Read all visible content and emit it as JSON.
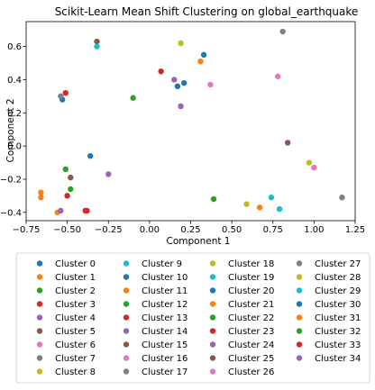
{
  "chart_data": {
    "type": "scatter",
    "title": "Scikit-Learn Mean Shift Clustering on global_earthquake",
    "xlabel": "Component 1",
    "ylabel": "Component 2",
    "xlim": [
      -0.75,
      1.25
    ],
    "ylim": [
      -0.45,
      0.75
    ],
    "xticks": [
      -0.75,
      -0.5,
      -0.25,
      0.0,
      0.25,
      0.5,
      0.75,
      1.0,
      1.25
    ],
    "xtick_labels": [
      "−0.75",
      "−0.50",
      "−0.25",
      "0.00",
      "0.25",
      "0.50",
      "0.75",
      "1.00",
      "1.25"
    ],
    "yticks": [
      -0.4,
      -0.2,
      0.0,
      0.2,
      0.4,
      0.6
    ],
    "ytick_labels": [
      "−0.4",
      "−0.2",
      "0.0",
      "0.2",
      "0.4",
      "0.6"
    ],
    "grid": false,
    "legend": {
      "placement": "below",
      "columns": 4
    },
    "series": [
      {
        "name": "Cluster 0",
        "color": "#1f77b4",
        "points": [
          [
            -0.53,
            0.28
          ],
          [
            0.17,
            0.36
          ],
          [
            -0.36,
            -0.06
          ],
          [
            0.21,
            0.38
          ],
          [
            0.33,
            0.55
          ]
        ]
      },
      {
        "name": "Cluster 1",
        "color": "#ff7f0e",
        "points": [
          [
            -0.66,
            -0.31
          ],
          [
            -0.66,
            -0.28
          ],
          [
            -0.56,
            -0.4
          ],
          [
            0.67,
            -0.37
          ],
          [
            0.31,
            0.51
          ]
        ]
      },
      {
        "name": "Cluster 2",
        "color": "#2ca02c",
        "points": [
          [
            -0.51,
            -0.14
          ],
          [
            -0.48,
            -0.26
          ],
          [
            -0.1,
            0.29
          ],
          [
            0.39,
            -0.32
          ]
        ]
      },
      {
        "name": "Cluster 3",
        "color": "#d62728",
        "points": [
          [
            -0.51,
            0.32
          ],
          [
            -0.38,
            -0.39
          ],
          [
            0.07,
            0.45
          ],
          [
            -0.5,
            -0.3
          ]
        ]
      },
      {
        "name": "Cluster 4",
        "color": "#9467bd",
        "points": [
          [
            0.15,
            0.4
          ],
          [
            -0.25,
            -0.17
          ],
          [
            0.19,
            0.24
          ]
        ]
      },
      {
        "name": "Cluster 5",
        "color": "#8c564b",
        "points": [
          [
            -0.32,
            0.63
          ],
          [
            -0.48,
            -0.19
          ],
          [
            0.84,
            0.02
          ]
        ]
      },
      {
        "name": "Cluster 6",
        "color": "#e377c2",
        "points": [
          [
            0.37,
            0.37
          ],
          [
            0.78,
            0.42
          ],
          [
            1.0,
            -0.13
          ]
        ]
      },
      {
        "name": "Cluster 7",
        "color": "#7f7f7f",
        "points": [
          [
            0.81,
            0.69
          ],
          [
            1.17,
            -0.31
          ],
          [
            -0.54,
            0.3
          ]
        ]
      },
      {
        "name": "Cluster 8",
        "color": "#bcbd22",
        "points": [
          [
            0.19,
            0.62
          ],
          [
            0.59,
            -0.35
          ],
          [
            0.97,
            -0.1
          ]
        ]
      },
      {
        "name": "Cluster 9",
        "color": "#17becf",
        "points": [
          [
            -0.32,
            0.6
          ],
          [
            0.74,
            -0.31
          ],
          [
            0.79,
            -0.38
          ]
        ]
      },
      {
        "name": "Cluster 10",
        "color": "#1f77b4",
        "points": []
      },
      {
        "name": "Cluster 11",
        "color": "#ff7f0e",
        "points": []
      },
      {
        "name": "Cluster 12",
        "color": "#2ca02c",
        "points": []
      },
      {
        "name": "Cluster 13",
        "color": "#d62728",
        "points": [
          [
            -0.39,
            -0.39
          ]
        ]
      },
      {
        "name": "Cluster 14",
        "color": "#9467bd",
        "points": [
          [
            -0.54,
            -0.39
          ]
        ]
      },
      {
        "name": "Cluster 15",
        "color": "#8c564b",
        "points": []
      },
      {
        "name": "Cluster 16",
        "color": "#e377c2",
        "points": []
      },
      {
        "name": "Cluster 17",
        "color": "#7f7f7f",
        "points": []
      },
      {
        "name": "Cluster 18",
        "color": "#bcbd22",
        "points": []
      },
      {
        "name": "Cluster 19",
        "color": "#17becf",
        "points": []
      },
      {
        "name": "Cluster 20",
        "color": "#1f77b4",
        "points": []
      },
      {
        "name": "Cluster 21",
        "color": "#ff7f0e",
        "points": []
      },
      {
        "name": "Cluster 22",
        "color": "#2ca02c",
        "points": []
      },
      {
        "name": "Cluster 23",
        "color": "#d62728",
        "points": []
      },
      {
        "name": "Cluster 24",
        "color": "#9467bd",
        "points": []
      },
      {
        "name": "Cluster 25",
        "color": "#8c564b",
        "points": []
      },
      {
        "name": "Cluster 26",
        "color": "#e377c2",
        "points": []
      },
      {
        "name": "Cluster 27",
        "color": "#7f7f7f",
        "points": []
      },
      {
        "name": "Cluster 28",
        "color": "#bcbd22",
        "points": []
      },
      {
        "name": "Cluster 29",
        "color": "#17becf",
        "points": []
      },
      {
        "name": "Cluster 30",
        "color": "#1f77b4",
        "points": []
      },
      {
        "name": "Cluster 31",
        "color": "#ff7f0e",
        "points": []
      },
      {
        "name": "Cluster 32",
        "color": "#2ca02c",
        "points": []
      },
      {
        "name": "Cluster 33",
        "color": "#d62728",
        "points": []
      },
      {
        "name": "Cluster 34",
        "color": "#9467bd",
        "points": []
      }
    ]
  }
}
